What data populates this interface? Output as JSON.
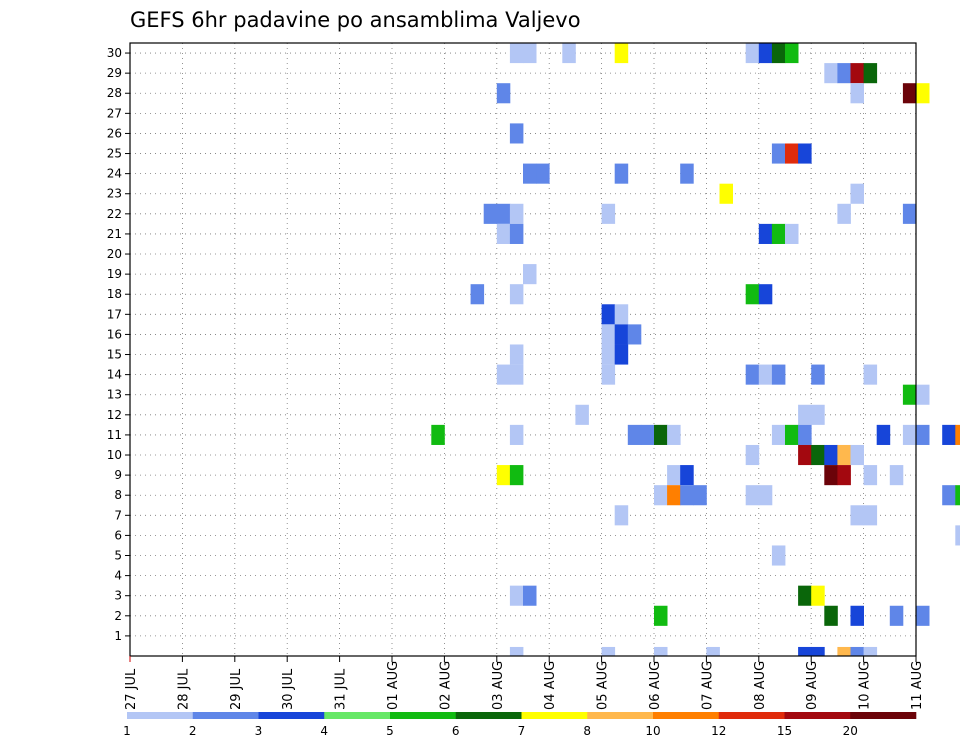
{
  "chart_data": {
    "type": "heatmap",
    "title": "GEFS 6hr padavine po ansamblima Valjevo",
    "xlabel": "",
    "ylabel": "",
    "x_ticks": [
      "27 JUL",
      "28 JUL",
      "29 JUL",
      "30 JUL",
      "31 JUL",
      "01 AUG",
      "02 AUG",
      "03 AUG",
      "04 AUG",
      "05 AUG",
      "06 AUG",
      "07 AUG",
      "08 AUG",
      "09 AUG",
      "10 AUG",
      "11 AUG"
    ],
    "y_ticks": [
      "1",
      "2",
      "3",
      "4",
      "5",
      "6",
      "7",
      "8",
      "9",
      "10",
      "11",
      "12",
      "13",
      "14",
      "15",
      "16",
      "17",
      "18",
      "19",
      "20",
      "21",
      "22",
      "23",
      "24",
      "25",
      "26",
      "27",
      "28",
      "29",
      "30"
    ],
    "grid": true,
    "x_unit": "6-hour step (day index from 27 JUL)",
    "colorbar": {
      "labels": [
        "1",
        "2",
        "3",
        "4",
        "5",
        "6",
        "7",
        "8",
        "10",
        "12",
        "15",
        "20"
      ],
      "colors": [
        "#b3c6f5",
        "#5f86e8",
        "#1745d9",
        "#66e866",
        "#11bb11",
        "#0a660a",
        "#ffff00",
        "#ffb84d",
        "#ff7f00",
        "#e02b0b",
        "#a3080f",
        "#6b0309"
      ]
    },
    "points": [
      {
        "t": 7.25,
        "m": 30,
        "v": 1
      },
      {
        "t": 7.5,
        "m": 30,
        "v": 1
      },
      {
        "t": 8.25,
        "m": 30,
        "v": 1
      },
      {
        "t": 9.25,
        "m": 30,
        "v": 7
      },
      {
        "t": 11.75,
        "m": 30,
        "v": 1
      },
      {
        "t": 12.0,
        "m": 30,
        "v": 3
      },
      {
        "t": 12.25,
        "m": 30,
        "v": 6
      },
      {
        "t": 12.5,
        "m": 30,
        "v": 5
      },
      {
        "t": 13.25,
        "m": 29,
        "v": 1
      },
      {
        "t": 13.5,
        "m": 29,
        "v": 2
      },
      {
        "t": 13.75,
        "m": 29,
        "v": 15
      },
      {
        "t": 14.0,
        "m": 29,
        "v": 6
      },
      {
        "t": 7.0,
        "m": 28,
        "v": 2
      },
      {
        "t": 13.75,
        "m": 28,
        "v": 1
      },
      {
        "t": 14.75,
        "m": 28,
        "v": 20
      },
      {
        "t": 15.0,
        "m": 28,
        "v": 7
      },
      {
        "t": 7.25,
        "m": 26,
        "v": 2
      },
      {
        "t": 12.25,
        "m": 25,
        "v": 2
      },
      {
        "t": 12.5,
        "m": 25,
        "v": 12
      },
      {
        "t": 12.75,
        "m": 25,
        "v": 3
      },
      {
        "t": 7.5,
        "m": 24,
        "v": 2
      },
      {
        "t": 7.75,
        "m": 24,
        "v": 2
      },
      {
        "t": 9.25,
        "m": 24,
        "v": 2
      },
      {
        "t": 10.5,
        "m": 24,
        "v": 2
      },
      {
        "t": 11.25,
        "m": 23,
        "v": 7
      },
      {
        "t": 13.75,
        "m": 23,
        "v": 1
      },
      {
        "t": 6.75,
        "m": 22,
        "v": 2
      },
      {
        "t": 7.0,
        "m": 22,
        "v": 2
      },
      {
        "t": 7.25,
        "m": 22,
        "v": 1
      },
      {
        "t": 9.0,
        "m": 22,
        "v": 1
      },
      {
        "t": 13.5,
        "m": 22,
        "v": 1
      },
      {
        "t": 14.75,
        "m": 22,
        "v": 2
      },
      {
        "t": 7.0,
        "m": 21,
        "v": 1
      },
      {
        "t": 7.25,
        "m": 21,
        "v": 2
      },
      {
        "t": 12.0,
        "m": 21,
        "v": 3
      },
      {
        "t": 12.25,
        "m": 21,
        "v": 5
      },
      {
        "t": 12.5,
        "m": 21,
        "v": 1
      },
      {
        "t": 7.5,
        "m": 19,
        "v": 1
      },
      {
        "t": 6.5,
        "m": 18,
        "v": 2
      },
      {
        "t": 7.25,
        "m": 18,
        "v": 1
      },
      {
        "t": 11.75,
        "m": 18,
        "v": 5
      },
      {
        "t": 12.0,
        "m": 18,
        "v": 3
      },
      {
        "t": 9.0,
        "m": 17,
        "v": 3
      },
      {
        "t": 9.25,
        "m": 17,
        "v": 1
      },
      {
        "t": 9.0,
        "m": 16,
        "v": 1
      },
      {
        "t": 9.25,
        "m": 16,
        "v": 3
      },
      {
        "t": 9.5,
        "m": 16,
        "v": 2
      },
      {
        "t": 7.25,
        "m": 15,
        "v": 1
      },
      {
        "t": 9.0,
        "m": 15,
        "v": 1
      },
      {
        "t": 9.25,
        "m": 15,
        "v": 3
      },
      {
        "t": 7.0,
        "m": 14,
        "v": 1
      },
      {
        "t": 7.25,
        "m": 14,
        "v": 1
      },
      {
        "t": 9.0,
        "m": 14,
        "v": 1
      },
      {
        "t": 11.75,
        "m": 14,
        "v": 2
      },
      {
        "t": 12.0,
        "m": 14,
        "v": 1
      },
      {
        "t": 12.25,
        "m": 14,
        "v": 2
      },
      {
        "t": 13.0,
        "m": 14,
        "v": 2
      },
      {
        "t": 14.0,
        "m": 14,
        "v": 1
      },
      {
        "t": 14.75,
        "m": 13,
        "v": 5
      },
      {
        "t": 15.0,
        "m": 13,
        "v": 1
      },
      {
        "t": 8.5,
        "m": 12,
        "v": 1
      },
      {
        "t": 12.75,
        "m": 12,
        "v": 1
      },
      {
        "t": 13.0,
        "m": 12,
        "v": 1
      },
      {
        "t": 5.75,
        "m": 11,
        "v": 5
      },
      {
        "t": 7.25,
        "m": 11,
        "v": 1
      },
      {
        "t": 9.5,
        "m": 11,
        "v": 2
      },
      {
        "t": 9.75,
        "m": 11,
        "v": 2
      },
      {
        "t": 10.0,
        "m": 11,
        "v": 6
      },
      {
        "t": 10.25,
        "m": 11,
        "v": 1
      },
      {
        "t": 12.25,
        "m": 11,
        "v": 1
      },
      {
        "t": 12.5,
        "m": 11,
        "v": 5
      },
      {
        "t": 12.75,
        "m": 11,
        "v": 2
      },
      {
        "t": 14.25,
        "m": 11,
        "v": 3
      },
      {
        "t": 14.75,
        "m": 11,
        "v": 1
      },
      {
        "t": 15.0,
        "m": 11,
        "v": 2
      },
      {
        "t": 15.5,
        "m": 11,
        "v": 3
      },
      {
        "t": 15.75,
        "m": 11,
        "v": 10
      },
      {
        "t": 11.75,
        "m": 10,
        "v": 1
      },
      {
        "t": 12.75,
        "m": 10,
        "v": 15
      },
      {
        "t": 13.0,
        "m": 10,
        "v": 6
      },
      {
        "t": 13.25,
        "m": 10,
        "v": 3
      },
      {
        "t": 13.5,
        "m": 10,
        "v": 8
      },
      {
        "t": 13.75,
        "m": 10,
        "v": 1
      },
      {
        "t": 7.0,
        "m": 9,
        "v": 7
      },
      {
        "t": 7.25,
        "m": 9,
        "v": 5
      },
      {
        "t": 10.25,
        "m": 9,
        "v": 1
      },
      {
        "t": 10.5,
        "m": 9,
        "v": 3
      },
      {
        "t": 13.25,
        "m": 9,
        "v": 20
      },
      {
        "t": 13.5,
        "m": 9,
        "v": 15
      },
      {
        "t": 14.0,
        "m": 9,
        "v": 1
      },
      {
        "t": 14.5,
        "m": 9,
        "v": 1
      },
      {
        "t": 10.0,
        "m": 8,
        "v": 1
      },
      {
        "t": 10.25,
        "m": 8,
        "v": 10
      },
      {
        "t": 10.5,
        "m": 8,
        "v": 2
      },
      {
        "t": 10.75,
        "m": 8,
        "v": 2
      },
      {
        "t": 11.75,
        "m": 8,
        "v": 1
      },
      {
        "t": 12.0,
        "m": 8,
        "v": 1
      },
      {
        "t": 15.5,
        "m": 8,
        "v": 2
      },
      {
        "t": 15.75,
        "m": 8,
        "v": 5
      },
      {
        "t": 9.25,
        "m": 7,
        "v": 1
      },
      {
        "t": 13.75,
        "m": 7,
        "v": 1
      },
      {
        "t": 14.0,
        "m": 7,
        "v": 1
      },
      {
        "t": 15.75,
        "m": 6,
        "v": 1
      },
      {
        "t": 12.25,
        "m": 5,
        "v": 1
      },
      {
        "t": 7.25,
        "m": 3,
        "v": 1
      },
      {
        "t": 7.5,
        "m": 3,
        "v": 2
      },
      {
        "t": 12.75,
        "m": 3,
        "v": 6
      },
      {
        "t": 13.0,
        "m": 3,
        "v": 7
      },
      {
        "t": 10.0,
        "m": 2,
        "v": 5
      },
      {
        "t": 13.25,
        "m": 2,
        "v": 6
      },
      {
        "t": 13.75,
        "m": 2,
        "v": 3
      },
      {
        "t": 14.5,
        "m": 2,
        "v": 2
      },
      {
        "t": 15.0,
        "m": 2,
        "v": 2
      },
      {
        "t": 7.25,
        "m": 0,
        "v": 1
      },
      {
        "t": 9.0,
        "m": 0,
        "v": 1
      },
      {
        "t": 10.0,
        "m": 0,
        "v": 1
      },
      {
        "t": 11.0,
        "m": 0,
        "v": 1
      },
      {
        "t": 12.75,
        "m": 0,
        "v": 3
      },
      {
        "t": 13.0,
        "m": 0,
        "v": 3
      },
      {
        "t": 13.5,
        "m": 0,
        "v": 8
      },
      {
        "t": 13.75,
        "m": 0,
        "v": 2
      },
      {
        "t": 14.0,
        "m": 0,
        "v": 1
      }
    ]
  }
}
